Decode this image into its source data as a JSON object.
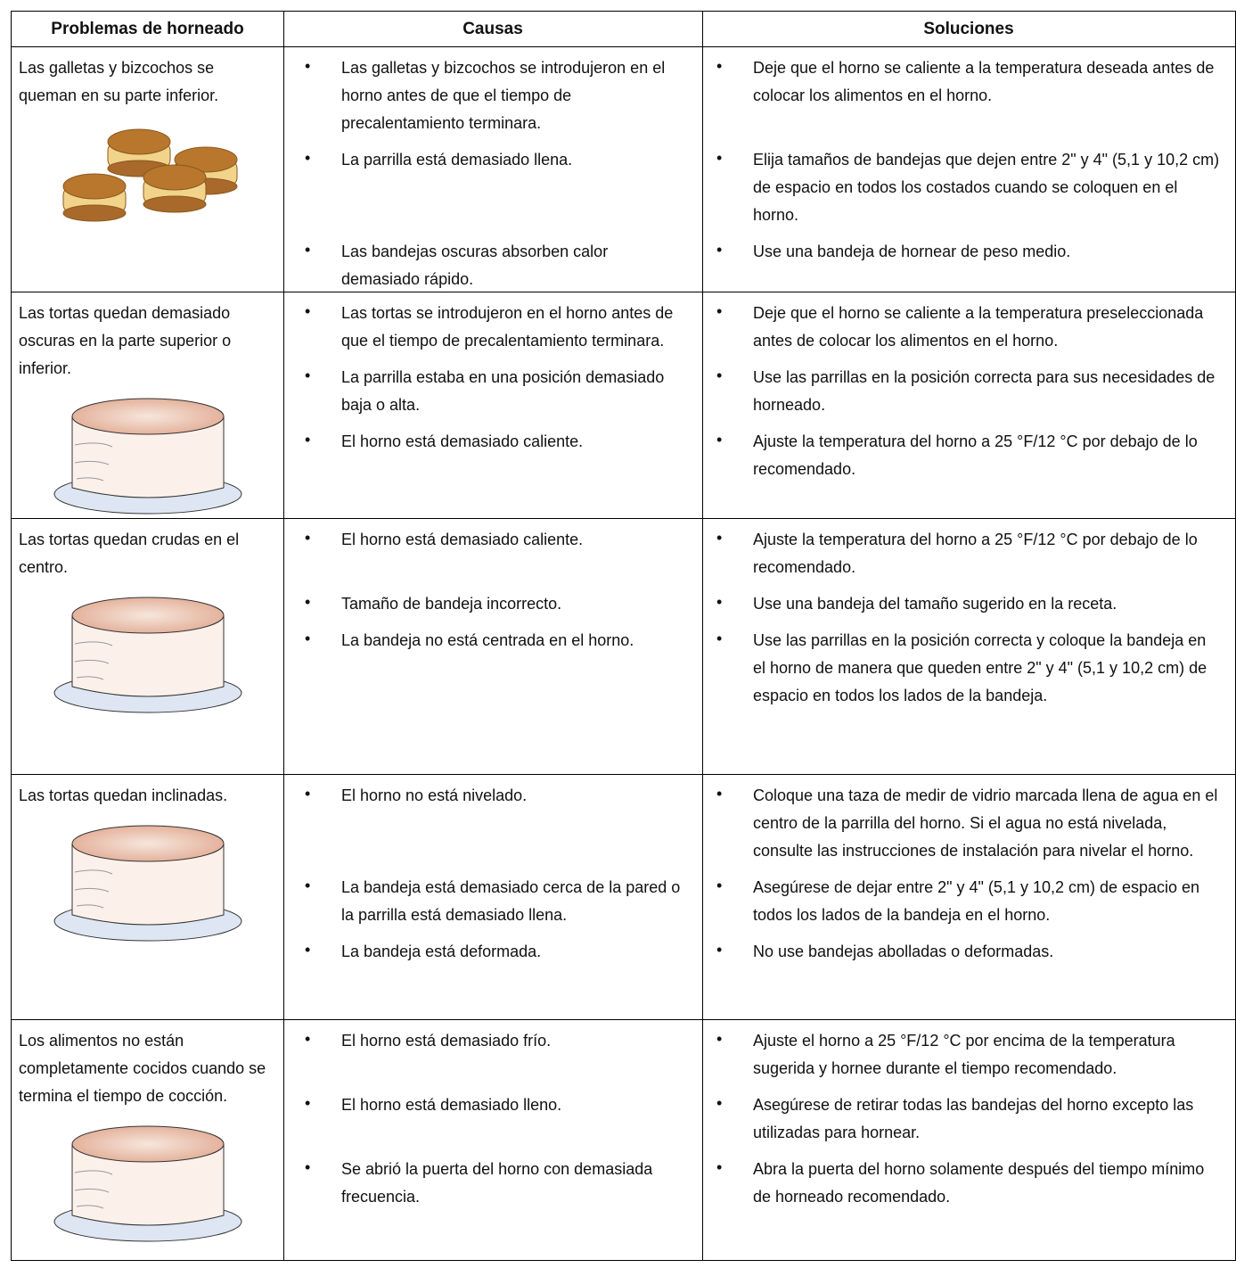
{
  "table": {
    "headers": [
      "Problemas de horneado",
      "Causas",
      "Soluciones"
    ],
    "rows": [
      {
        "problem": "Las galletas y bizcochos se queman en su parte inferior.",
        "items": [
          {
            "cause": "Las galletas y bizcochos se introdujeron en el horno antes de que el tiempo de precalentamiento terminara.",
            "solution": "Deje que el horno se caliente a la temperatura deseada antes de colocar los alimentos en el horno."
          },
          {
            "cause": "La parrilla está demasiado llena.",
            "solution": "Elija tamaños de bandejas que dejen entre 2\" y 4\" (5,1 y 10,2 cm) de espacio en todos los costados cuando se coloquen en el horno."
          },
          {
            "cause": "Las bandejas oscuras absorben calor demasiado rápido.",
            "solution": "Use una bandeja de hornear de peso medio."
          }
        ]
      },
      {
        "problem": "Las tortas quedan demasiado oscuras en la parte superior o inferior.",
        "items": [
          {
            "cause": "Las tortas se introdujeron en el horno antes de que el tiempo de precalentamiento terminara.",
            "solution": "Deje que el horno se caliente a la temperatura preseleccionada antes de colocar los alimentos en el horno."
          },
          {
            "cause": "La parrilla estaba en una posición demasiado baja o alta.",
            "solution": "Use las parrillas en la posición correcta para sus necesidades de horneado."
          },
          {
            "cause": "El horno está demasiado caliente.",
            "solution": "Ajuste la temperatura del horno a 25 °F/12 °C por debajo de lo recomendado."
          }
        ]
      },
      {
        "problem": "Las tortas quedan crudas en el centro.",
        "items": [
          {
            "cause": "El horno está demasiado caliente.",
            "solution": "Ajuste la temperatura del horno a 25 °F/12 °C por debajo de lo recomendado."
          },
          {
            "cause": "Tamaño de bandeja incorrecto.",
            "solution": "Use una bandeja del tamaño sugerido en la receta."
          },
          {
            "cause": "La bandeja no está centrada en el horno.",
            "solution": "Use las parrillas en la posición correcta y coloque la bandeja en el horno de manera que queden entre 2\" y 4\" (5,1 y 10,2 cm) de espacio en todos los lados de la bandeja."
          }
        ]
      },
      {
        "problem": "Las tortas quedan inclinadas.",
        "items": [
          {
            "cause": "El horno no está nivelado.",
            "solution": "Coloque una taza de medir de vidrio marcada llena de agua en el centro de la parrilla del horno. Si el agua no está nivelada, consulte las instrucciones de instalación para nivelar el horno."
          },
          {
            "cause": "La bandeja está demasiado cerca de la pared o la parrilla está demasiado llena.",
            "solution": "Asegúrese de dejar entre 2\" y 4\" (5,1 y 10,2 cm) de espacio en todos los lados de la bandeja en el horno."
          },
          {
            "cause": "La bandeja está deformada.",
            "solution": "No use bandejas abolladas o deformadas."
          }
        ]
      },
      {
        "problem": "Los alimentos no están completamente cocidos cuando se termina el tiempo de cocción.",
        "items": [
          {
            "cause": "El horno está demasiado frío.",
            "solution": "Ajuste el horno a 25 °F/12 °C por encima de la temperatura sugerida y hornee durante el tiempo recomendado."
          },
          {
            "cause": "El horno está demasiado lleno.",
            "solution": "Asegúrese de retirar todas las bandejas del horno excepto las utilizadas para hornear."
          },
          {
            "cause": "Se abrió la puerta del horno con demasiada frecuencia.",
            "solution": "Abra la puerta del horno solamente después del tiempo mínimo de horneado recomendado."
          }
        ]
      }
    ]
  }
}
